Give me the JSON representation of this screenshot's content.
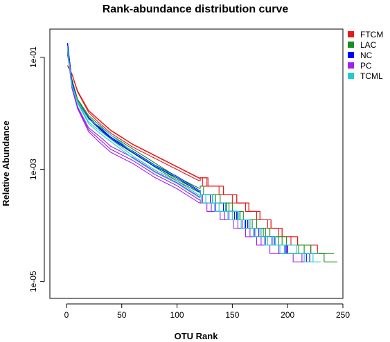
{
  "chart_data": {
    "type": "line",
    "title": "Rank-abundance distribution curve",
    "xlabel": "OTU Rank",
    "ylabel": "Relative Abundance",
    "xlim": [
      -15,
      250
    ],
    "ylim_log10": [
      -5.3,
      -0.5
    ],
    "y_scale": "log",
    "x_ticks": [
      0,
      50,
      100,
      150,
      200,
      250
    ],
    "x_tick_labels": [
      "0",
      "50",
      "100",
      "150",
      "200",
      "250"
    ],
    "y_ticks_log10": [
      -1,
      -3,
      -5
    ],
    "y_tick_labels": [
      "1e-01",
      "1e-03",
      "1e-05"
    ],
    "legend_position": "top-right",
    "series": [
      {
        "name": "FTCM",
        "color": "#E41A1C",
        "x": [
          1,
          5,
          10,
          20,
          40,
          60,
          80,
          100,
          120,
          140,
          160,
          180,
          200,
          230
        ],
        "log10_y": [
          -1.15,
          -1.3,
          -1.6,
          -1.95,
          -2.3,
          -2.55,
          -2.75,
          -2.95,
          -3.15,
          -3.35,
          -3.6,
          -3.9,
          -4.2,
          -4.45
        ]
      },
      {
        "name": "LAC",
        "color": "#1E8B1E",
        "x": [
          1,
          5,
          10,
          20,
          40,
          60,
          80,
          100,
          120,
          140,
          160,
          180,
          200,
          245
        ],
        "log10_y": [
          -0.95,
          -1.4,
          -1.75,
          -2.05,
          -2.4,
          -2.65,
          -2.9,
          -3.15,
          -3.35,
          -3.55,
          -3.85,
          -4.1,
          -4.3,
          -4.6
        ]
      },
      {
        "name": "NC",
        "color": "#0000FF",
        "x": [
          1,
          5,
          10,
          20,
          40,
          60,
          80,
          100,
          120,
          140,
          160,
          180,
          200,
          220
        ],
        "log10_y": [
          -0.75,
          -1.45,
          -1.8,
          -2.1,
          -2.45,
          -2.7,
          -2.95,
          -3.15,
          -3.4,
          -3.65,
          -3.95,
          -4.2,
          -4.45,
          -4.6
        ]
      },
      {
        "name": "PC",
        "color": "#A020F0",
        "x": [
          1,
          5,
          10,
          20,
          40,
          60,
          80,
          100,
          120,
          140,
          160,
          180,
          200,
          215
        ],
        "log10_y": [
          -0.9,
          -1.55,
          -1.9,
          -2.3,
          -2.65,
          -2.85,
          -3.1,
          -3.3,
          -3.55,
          -3.8,
          -4.05,
          -4.35,
          -4.5,
          -4.6
        ]
      },
      {
        "name": "TCML",
        "color": "#22CCCC",
        "x": [
          1,
          5,
          10,
          20,
          40,
          60,
          80,
          100,
          120,
          140,
          160,
          180,
          200,
          230
        ],
        "log10_y": [
          -0.85,
          -1.5,
          -1.8,
          -2.15,
          -2.45,
          -2.75,
          -3.0,
          -3.2,
          -3.45,
          -3.7,
          -3.95,
          -4.25,
          -4.45,
          -4.6
        ]
      }
    ]
  }
}
